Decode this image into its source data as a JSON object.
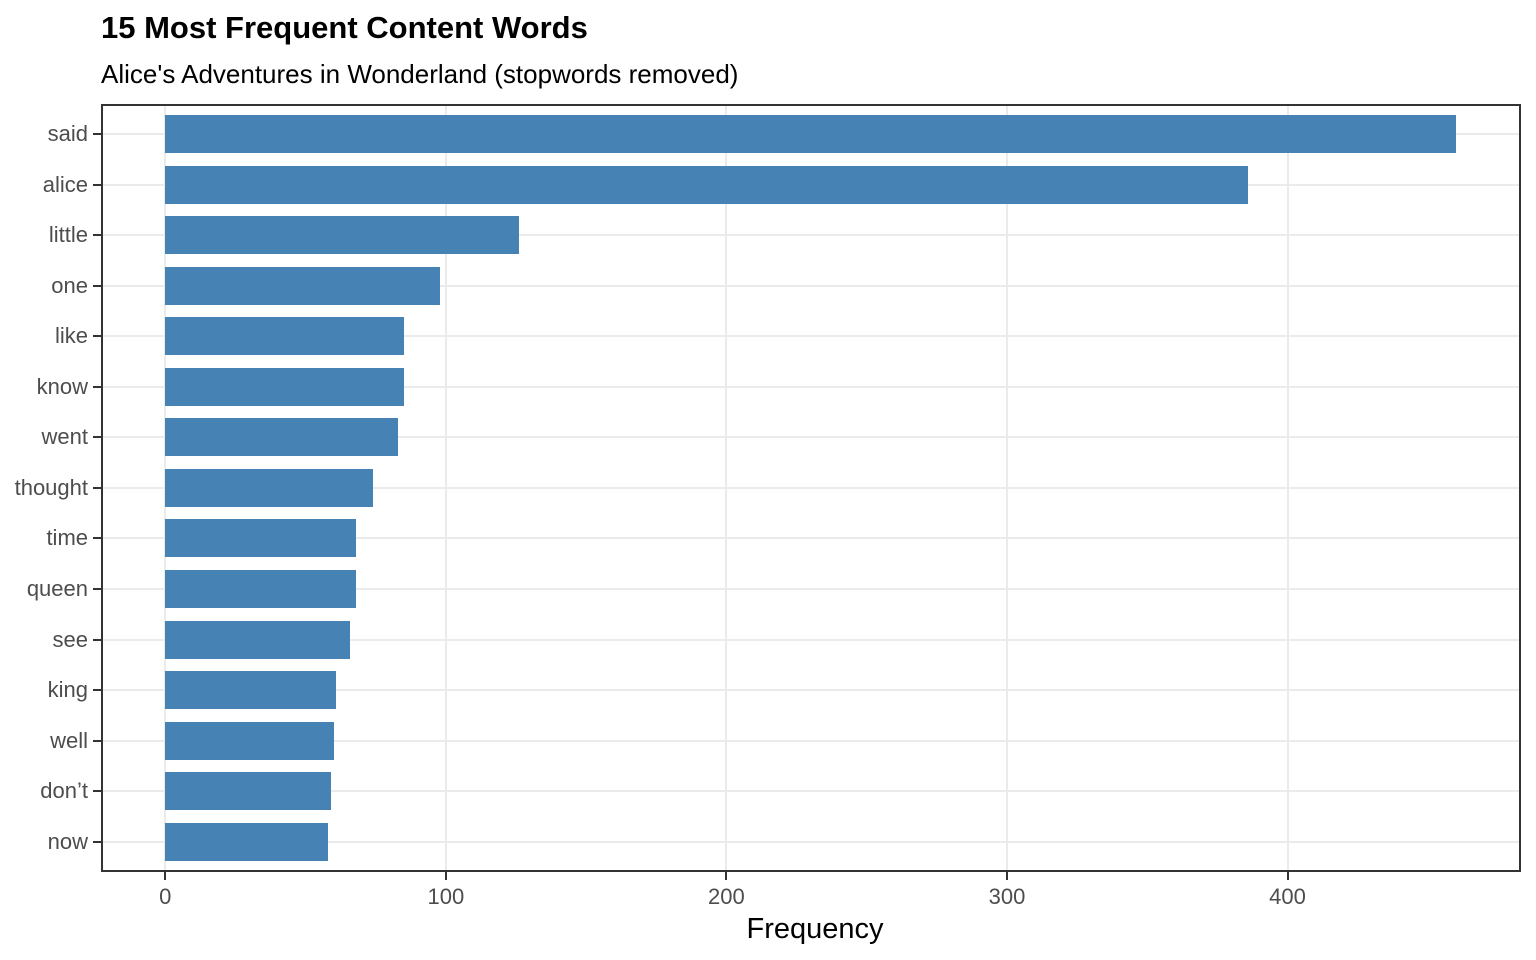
{
  "chart_data": {
    "type": "bar",
    "orientation": "horizontal",
    "title": "15 Most Frequent Content Words",
    "subtitle": "Alice's Adventures in Wonderland (stopwords removed)",
    "xlabel": "Frequency",
    "ylabel": "",
    "categories": [
      "said",
      "alice",
      "little",
      "one",
      "like",
      "know",
      "went",
      "thought",
      "time",
      "queen",
      "see",
      "king",
      "well",
      "don’t",
      "now"
    ],
    "values": [
      460,
      386,
      126,
      98,
      85,
      85,
      83,
      74,
      68,
      68,
      66,
      61,
      60,
      59,
      58
    ],
    "xticks": [
      0,
      100,
      200,
      300,
      400
    ],
    "xlim": [
      -22.2,
      482.5
    ],
    "grid": "major-only",
    "legend": "none",
    "colors": {
      "bar_fill": "#4682B4",
      "panel_border": "#333333",
      "gridline": "#ebebeb",
      "axis_text": "#4d4d4d",
      "tick_mark": "#333333",
      "title_text": "#000000"
    }
  }
}
